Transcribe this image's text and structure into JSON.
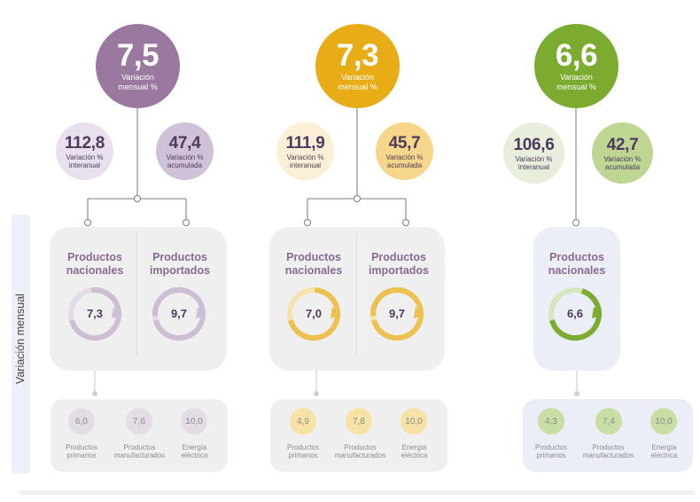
{
  "side_label": "Variación mensual",
  "colors": {
    "purple": "#9a78a0",
    "purple_light": "#e8e0ec",
    "purple_mid": "#cfc2d8",
    "yellow": "#e8ac16",
    "yellow_light": "#fbf0d5",
    "yellow_mid": "#f5d68a",
    "green": "#7bab2f",
    "green_light": "#e7eedc",
    "green_mid": "#bfd693",
    "text_dark": "#4d3a5c"
  },
  "groups": [
    {
      "main": {
        "value": "7,5",
        "label": "Variación mensual %"
      },
      "interanual": {
        "value": "112,8",
        "label": "Variación % interanual"
      },
      "acumulada": {
        "value": "47,4",
        "label": "Variación % acumulada"
      },
      "products": [
        {
          "title": "Productos nacionales",
          "value": "7,3",
          "level": 0.73
        },
        {
          "title": "Productos importados",
          "value": "9,7",
          "level": 0.97
        }
      ],
      "breakdown": [
        {
          "value": "6,0",
          "label": "Productos primarios"
        },
        {
          "value": "7,6",
          "label": "Productos manufacturados"
        },
        {
          "value": "10,0",
          "label": "Energía eléctrica"
        }
      ]
    },
    {
      "main": {
        "value": "7,3",
        "label": "Variación mensual %"
      },
      "interanual": {
        "value": "111,9",
        "label": "Variación % interanual"
      },
      "acumulada": {
        "value": "45,7",
        "label": "Variación % acumulada"
      },
      "products": [
        {
          "title": "Productos nacionales",
          "value": "7,0",
          "level": 0.7
        },
        {
          "title": "Productos importados",
          "value": "9,7",
          "level": 0.97
        }
      ],
      "breakdown": [
        {
          "value": "4,9",
          "label": "Productos primarios"
        },
        {
          "value": "7,8",
          "label": "Productos manufacturados"
        },
        {
          "value": "10,0",
          "label": "Energía eléctrica"
        }
      ]
    },
    {
      "main": {
        "value": "6,6",
        "label": "Variación mensual %"
      },
      "interanual": {
        "value": "106,6",
        "label": "Variación % interanual"
      },
      "acumulada": {
        "value": "42,7",
        "label": "Variación % acumulada"
      },
      "products": [
        {
          "title": "Productos nacionales",
          "value": "6,6",
          "level": 0.66
        }
      ],
      "breakdown": [
        {
          "value": "4,3",
          "label": "Productos primarios"
        },
        {
          "value": "7,4",
          "label": "Productos manufacturados"
        },
        {
          "value": "10,0",
          "label": "Energía eléctrica"
        }
      ]
    }
  ]
}
